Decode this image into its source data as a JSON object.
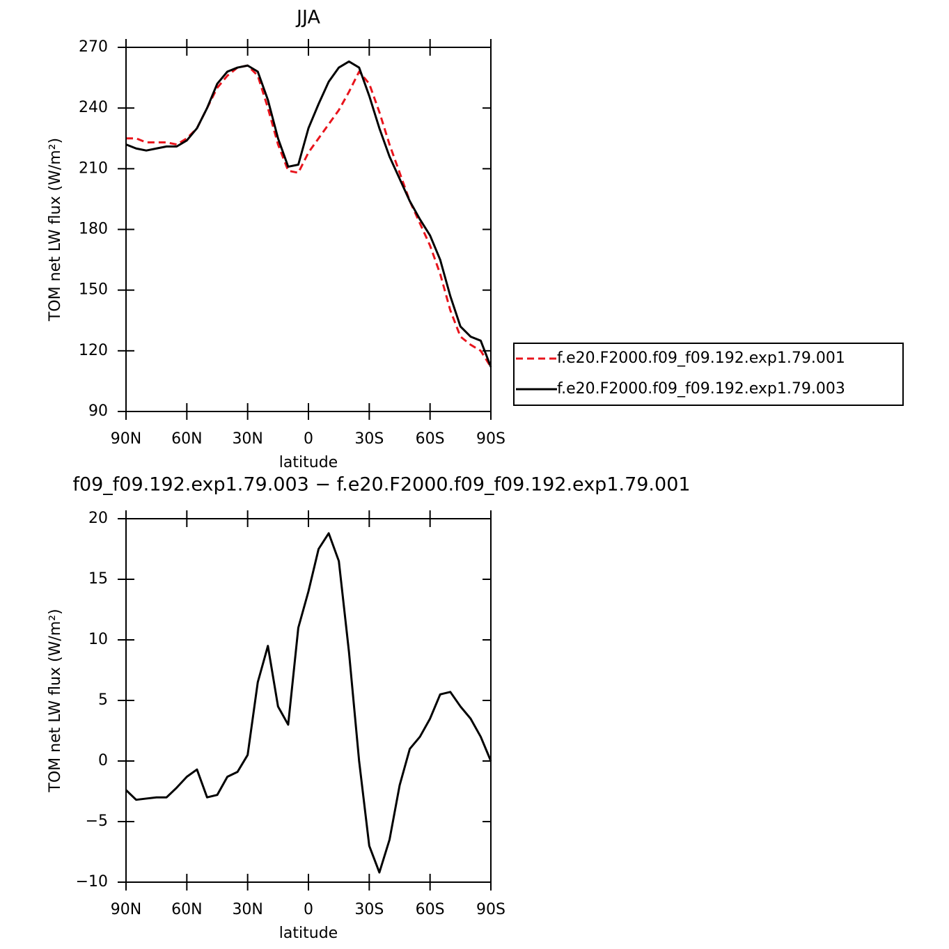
{
  "chart_data": [
    {
      "type": "line",
      "title": "JJA",
      "xlabel": "latitude",
      "ylabel": "TOM net LW flux (W/m²)",
      "x": [
        90,
        85,
        80,
        75,
        70,
        65,
        60,
        55,
        50,
        45,
        40,
        35,
        30,
        25,
        20,
        15,
        10,
        5,
        0,
        -5,
        -10,
        -15,
        -20,
        -25,
        -30,
        -35,
        -40,
        -45,
        -50,
        -55,
        -60,
        -65,
        -70,
        -75,
        -80,
        -85,
        -90
      ],
      "xlim": [
        90,
        -90
      ],
      "xticks": [
        {
          "value": 90,
          "label": "90N"
        },
        {
          "value": 60,
          "label": "60N"
        },
        {
          "value": 30,
          "label": "30N"
        },
        0,
        {
          "value": -30,
          "label": "30S"
        },
        {
          "value": -60,
          "label": "60S"
        },
        {
          "value": -90,
          "label": "90S"
        }
      ],
      "ylim": [
        90,
        270
      ],
      "yticks": [
        90,
        120,
        150,
        180,
        210,
        240,
        270
      ],
      "legend": "right",
      "series": [
        {
          "name": "f.e20.F2000.f09_f09.192.exp1.79.001",
          "color": "#e8141c",
          "dash": true,
          "values": [
            225,
            225,
            223,
            223,
            223,
            222,
            225,
            230,
            240,
            250,
            256,
            260,
            261,
            256,
            240,
            222,
            209,
            208,
            218,
            225,
            232,
            239,
            248,
            258,
            252,
            238,
            222,
            208,
            194,
            183,
            172,
            158,
            140,
            127,
            123,
            120,
            112
          ]
        },
        {
          "name": "f.e20.F2000.f09_f09.192.exp1.79.003",
          "color": "#000000",
          "dash": false,
          "values": [
            222,
            220,
            219,
            220,
            221,
            221,
            224,
            230,
            240,
            252,
            258,
            260,
            261,
            258,
            244,
            225,
            211,
            212,
            230,
            242,
            253,
            260,
            263,
            260,
            246,
            230,
            216,
            205,
            194,
            185,
            177,
            165,
            147,
            132,
            127,
            125,
            112
          ]
        }
      ]
    },
    {
      "type": "line",
      "title": "f09_f09.192.exp1.79.003 − f.e20.F2000.f09_f09.192.exp1.79.001",
      "xlabel": "latitude",
      "ylabel": "TOM net LW flux (W/m²)",
      "x": [
        90,
        85,
        80,
        75,
        70,
        65,
        60,
        55,
        50,
        45,
        40,
        35,
        30,
        25,
        20,
        15,
        10,
        5,
        0,
        -5,
        -10,
        -15,
        -20,
        -25,
        -30,
        -35,
        -40,
        -45,
        -50,
        -55,
        -60,
        -65,
        -70,
        -75,
        -80,
        -85,
        -90
      ],
      "xlim": [
        90,
        -90
      ],
      "xticks": [
        {
          "value": 90,
          "label": "90N"
        },
        {
          "value": 60,
          "label": "60N"
        },
        {
          "value": 30,
          "label": "30N"
        },
        0,
        {
          "value": -30,
          "label": "30S"
        },
        {
          "value": -60,
          "label": "60S"
        },
        {
          "value": -90,
          "label": "90S"
        }
      ],
      "ylim": [
        -10,
        20
      ],
      "yticks": [
        {
          "value": -10,
          "label": "−10"
        },
        {
          "value": -5,
          "label": "−5"
        },
        0,
        5,
        10,
        15,
        20
      ],
      "series": [
        {
          "color": "#000000",
          "dash": false,
          "values": [
            -2.4,
            -3.2,
            -3.1,
            -3.0,
            -3.0,
            -2.2,
            -1.3,
            -0.7,
            -3.0,
            -2.8,
            -1.3,
            -0.9,
            0.5,
            6.5,
            9.5,
            4.5,
            3.0,
            11.0,
            14.0,
            17.5,
            18.8,
            16.5,
            9.0,
            0.0,
            -7.0,
            -9.2,
            -6.5,
            -2.0,
            1.0,
            2.0,
            3.5,
            5.5,
            5.7,
            4.5,
            3.5,
            2.0,
            0.0
          ]
        }
      ]
    }
  ]
}
